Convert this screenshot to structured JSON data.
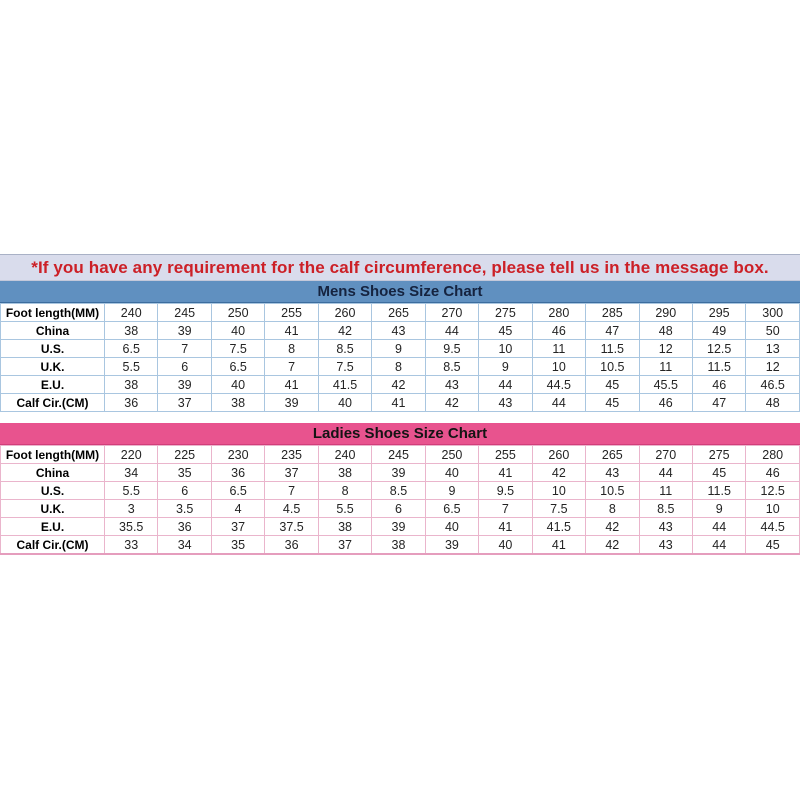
{
  "notice": {
    "text": "*If you have any requirement for the calf circumference, please tell us in the message box.",
    "text_color": "#cc2027",
    "background": "#d9dcec"
  },
  "colors": {
    "mens_header_bg": "#6090c0",
    "mens_header_text": "#15233f",
    "mens_table_border": "#a9c6e0",
    "ladies_header_bg": "#e8538e",
    "ladies_header_text": "#141414",
    "ladies_table_border": "#eab5cc",
    "page_background": "#ffffff"
  },
  "chart_data": [
    {
      "type": "table",
      "title": "Mens Shoes Size Chart",
      "rows": [
        {
          "label": "Foot length(MM)",
          "values": [
            "240",
            "245",
            "250",
            "255",
            "260",
            "265",
            "270",
            "275",
            "280",
            "285",
            "290",
            "295",
            "300"
          ]
        },
        {
          "label": "China",
          "values": [
            "38",
            "39",
            "40",
            "41",
            "42",
            "43",
            "44",
            "45",
            "46",
            "47",
            "48",
            "49",
            "50"
          ]
        },
        {
          "label": "U.S.",
          "values": [
            "6.5",
            "7",
            "7.5",
            "8",
            "8.5",
            "9",
            "9.5",
            "10",
            "11",
            "11.5",
            "12",
            "12.5",
            "13"
          ]
        },
        {
          "label": "U.K.",
          "values": [
            "5.5",
            "6",
            "6.5",
            "7",
            "7.5",
            "8",
            "8.5",
            "9",
            "10",
            "10.5",
            "11",
            "11.5",
            "12"
          ]
        },
        {
          "label": "E.U.",
          "values": [
            "38",
            "39",
            "40",
            "41",
            "41.5",
            "42",
            "43",
            "44",
            "44.5",
            "45",
            "45.5",
            "46",
            "46.5"
          ]
        },
        {
          "label": "Calf Cir.(CM)",
          "values": [
            "36",
            "37",
            "38",
            "39",
            "40",
            "41",
            "42",
            "43",
            "44",
            "45",
            "46",
            "47",
            "48"
          ]
        }
      ]
    },
    {
      "type": "table",
      "title": "Ladies Shoes Size Chart",
      "rows": [
        {
          "label": "Foot length(MM)",
          "values": [
            "220",
            "225",
            "230",
            "235",
            "240",
            "245",
            "250",
            "255",
            "260",
            "265",
            "270",
            "275",
            "280"
          ]
        },
        {
          "label": "China",
          "values": [
            "34",
            "35",
            "36",
            "37",
            "38",
            "39",
            "40",
            "41",
            "42",
            "43",
            "44",
            "45",
            "46"
          ]
        },
        {
          "label": "U.S.",
          "values": [
            "5.5",
            "6",
            "6.5",
            "7",
            "8",
            "8.5",
            "9",
            "9.5",
            "10",
            "10.5",
            "11",
            "11.5",
            "12.5"
          ]
        },
        {
          "label": "U.K.",
          "values": [
            "3",
            "3.5",
            "4",
            "4.5",
            "5.5",
            "6",
            "6.5",
            "7",
            "7.5",
            "8",
            "8.5",
            "9",
            "10"
          ]
        },
        {
          "label": "E.U.",
          "values": [
            "35.5",
            "36",
            "37",
            "37.5",
            "38",
            "39",
            "40",
            "41",
            "41.5",
            "42",
            "43",
            "44",
            "44.5"
          ]
        },
        {
          "label": "Calf Cir.(CM)",
          "values": [
            "33",
            "34",
            "35",
            "36",
            "37",
            "38",
            "39",
            "40",
            "41",
            "42",
            "43",
            "44",
            "45"
          ]
        }
      ]
    }
  ]
}
